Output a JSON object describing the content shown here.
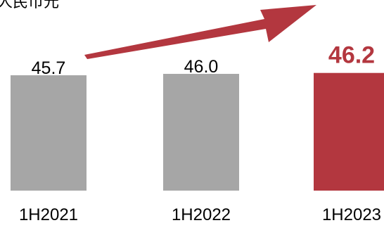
{
  "chart_data": {
    "type": "bar",
    "unit_label": "人民币元",
    "categories": [
      "1H2021",
      "1H2022",
      "1H2023"
    ],
    "values": [
      45.7,
      46.0,
      46.2
    ],
    "value_labels": [
      "45.7",
      "46.0",
      "46.2"
    ],
    "highlight_index": 2,
    "colors": {
      "bar": "#a6a6a6",
      "highlight": "#b3373f",
      "arrow": "#b3373f"
    },
    "trend_arrow": true,
    "legend": "none",
    "grid": false
  }
}
